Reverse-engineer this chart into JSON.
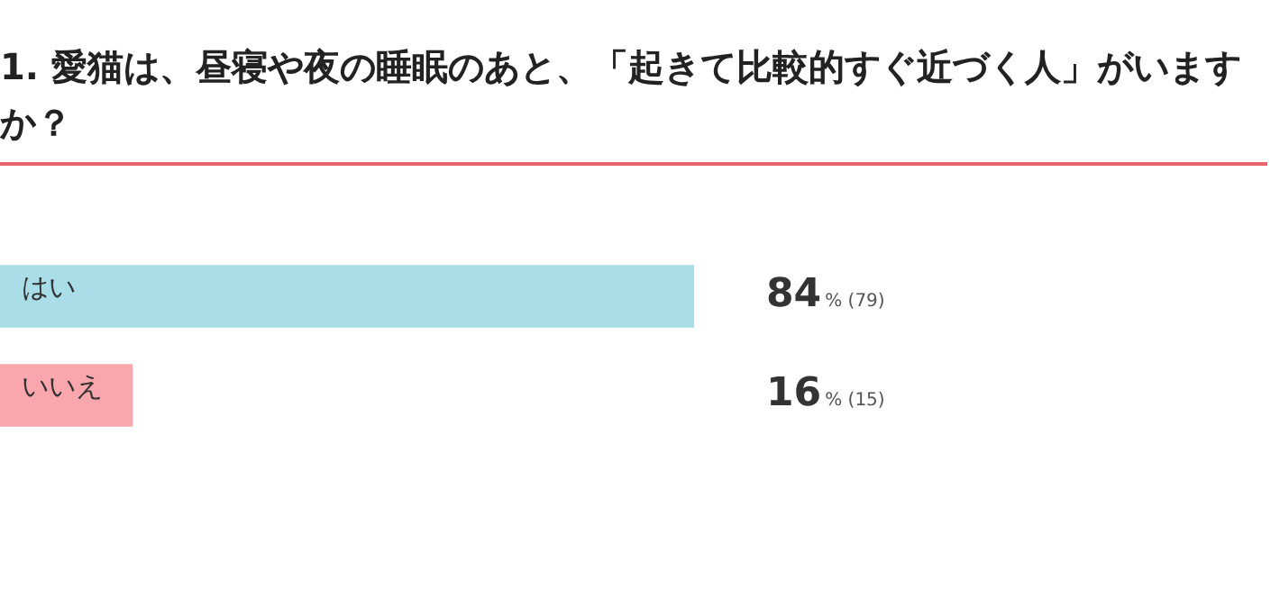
{
  "chart_data": {
    "type": "bar",
    "orientation": "horizontal",
    "title": "1. 愛猫は、昼寝や夜の睡眠のあと、「起きて比較的すぐ近づく人」がいますか？",
    "categories": [
      "はい",
      "いいえ"
    ],
    "values": [
      84,
      16
    ],
    "colors": [
      "#a9dde8",
      "#f9a7ac"
    ],
    "value_labels": [
      "84% (79)",
      "16% (15)"
    ]
  }
}
